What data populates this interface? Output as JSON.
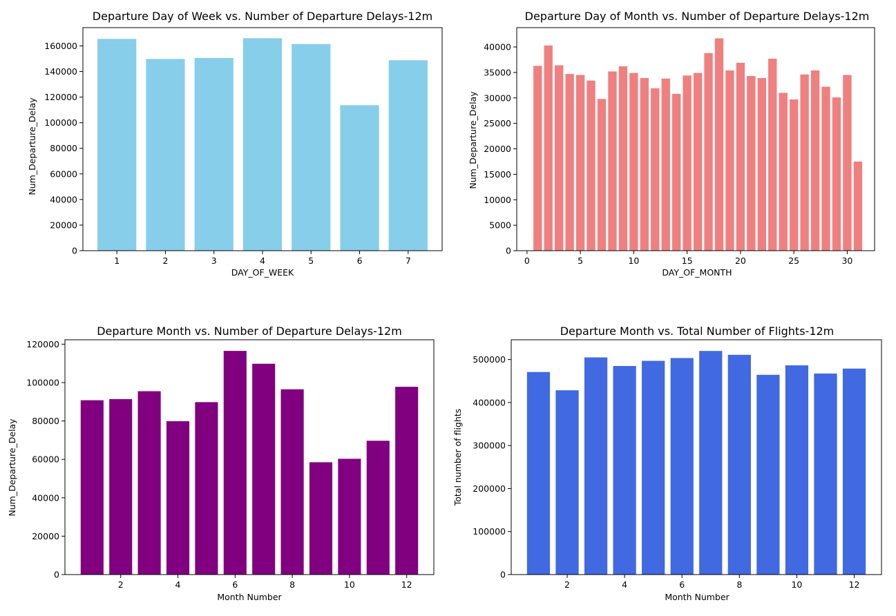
{
  "chart_data": [
    {
      "type": "bar",
      "title": "Departure Day of Week vs. Number of Departure Delays-12m",
      "xlabel": "DAY_OF_WEEK",
      "ylabel": "Num_Departure_Delay",
      "color": "#87CEEB",
      "categories": [
        1,
        2,
        3,
        4,
        5,
        6,
        7
      ],
      "values": [
        165500,
        149800,
        150600,
        166000,
        161500,
        113700,
        148800
      ],
      "xticks": [
        1,
        2,
        3,
        4,
        5,
        6,
        7
      ],
      "yticks": [
        0,
        20000,
        40000,
        60000,
        80000,
        100000,
        120000,
        140000,
        160000
      ],
      "xlim": [
        0.3,
        7.7
      ],
      "ylim": [
        0,
        174300
      ],
      "bar_width": 0.8,
      "grid": false
    },
    {
      "type": "bar",
      "title": "Departure Day of Month vs. Number of Departure Delays-12m",
      "xlabel": "DAY_OF_MONTH",
      "ylabel": "Num_Departure_Delay",
      "color": "#F08080",
      "categories": [
        1,
        2,
        3,
        4,
        5,
        6,
        7,
        8,
        9,
        10,
        11,
        12,
        13,
        14,
        15,
        16,
        17,
        18,
        19,
        20,
        21,
        22,
        23,
        24,
        25,
        26,
        27,
        28,
        29,
        30,
        31
      ],
      "values": [
        36300,
        40300,
        36400,
        34700,
        34500,
        33400,
        29800,
        35200,
        36200,
        34900,
        33900,
        31900,
        33800,
        30800,
        34400,
        34900,
        38800,
        41700,
        35400,
        36900,
        34300,
        33900,
        37700,
        31000,
        29700,
        34600,
        35400,
        32200,
        30100,
        34500,
        17500
      ],
      "xticks": [
        0,
        5,
        10,
        15,
        20,
        25,
        30
      ],
      "yticks": [
        0,
        5000,
        10000,
        15000,
        20000,
        25000,
        30000,
        35000,
        40000
      ],
      "xlim": [
        -0.96,
        32.56
      ],
      "ylim": [
        0,
        43800
      ],
      "bar_width": 0.8,
      "grid": false
    },
    {
      "type": "bar",
      "title": "Departure Month vs. Number of Departure Delays-12m",
      "xlabel": "Month Number",
      "ylabel": "Num_Departure_Delay",
      "color": "#800080",
      "categories": [
        1,
        2,
        3,
        4,
        5,
        6,
        7,
        8,
        9,
        10,
        11,
        12
      ],
      "values": [
        90800,
        91400,
        95500,
        79900,
        89800,
        116500,
        109800,
        96500,
        58500,
        60300,
        69700,
        97800
      ],
      "xticks": [
        2,
        4,
        6,
        8,
        10,
        12
      ],
      "yticks": [
        0,
        20000,
        40000,
        60000,
        80000,
        100000,
        120000
      ],
      "xlim": [
        0.05,
        12.95
      ],
      "ylim": [
        0,
        122300
      ],
      "bar_width": 0.8,
      "grid": false
    },
    {
      "type": "bar",
      "title": "Departure Month vs. Total Number of Flights-12m",
      "xlabel": "Month Number",
      "ylabel": "Total number of flights",
      "color": "#4169E1",
      "categories": [
        1,
        2,
        3,
        4,
        5,
        6,
        7,
        8,
        9,
        10,
        11,
        12
      ],
      "values": [
        471000,
        428500,
        505000,
        485000,
        497000,
        503500,
        520000,
        511000,
        464500,
        486500,
        467500,
        479000
      ],
      "xticks": [
        2,
        4,
        6,
        8,
        10,
        12
      ],
      "yticks": [
        0,
        100000,
        200000,
        300000,
        400000,
        500000
      ],
      "xlim": [
        0.05,
        12.95
      ],
      "ylim": [
        0,
        546000
      ],
      "bar_width": 0.8,
      "grid": false
    }
  ]
}
